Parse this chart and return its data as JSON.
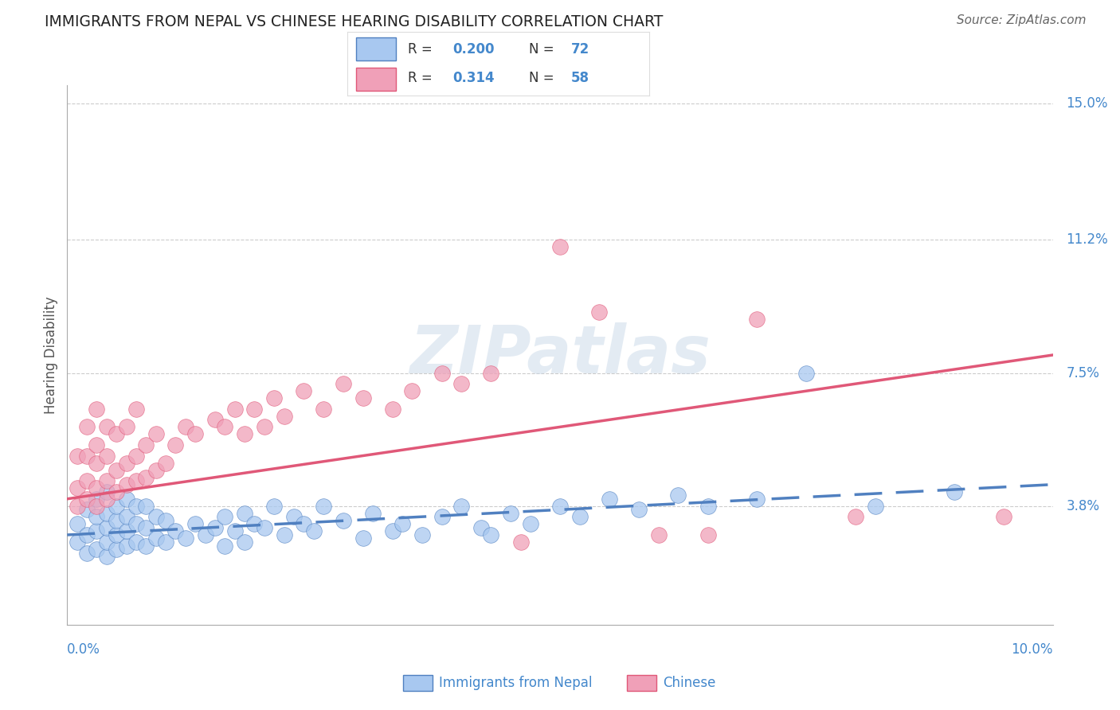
{
  "title": "IMMIGRANTS FROM NEPAL VS CHINESE HEARING DISABILITY CORRELATION CHART",
  "source": "Source: ZipAtlas.com",
  "ylabel": "Hearing Disability",
  "xlim": [
    0.0,
    0.1
  ],
  "ylim": [
    0.005,
    0.155
  ],
  "ytick_labels": [
    "3.8%",
    "7.5%",
    "11.2%",
    "15.0%"
  ],
  "ytick_positions": [
    0.038,
    0.075,
    0.112,
    0.15
  ],
  "nepal_R": 0.2,
  "nepal_N": 72,
  "chinese_R": 0.314,
  "chinese_N": 58,
  "nepal_color": "#a8c8f0",
  "chinese_color": "#f0a0b8",
  "nepal_line_color": "#5080c0",
  "chinese_line_color": "#e05878",
  "legend_label_nepal": "Immigrants from Nepal",
  "legend_label_chinese": "Chinese",
  "watermark": "ZIPatlas",
  "background_color": "#ffffff",
  "grid_color": "#cccccc",
  "title_color": "#222222",
  "axis_label_color": "#555555",
  "tick_label_color": "#4488cc",
  "source_color": "#666666",
  "nepal_line_x0": 0.0,
  "nepal_line_y0": 0.03,
  "nepal_line_x1": 0.1,
  "nepal_line_y1": 0.044,
  "chinese_line_x0": 0.0,
  "chinese_line_y0": 0.04,
  "chinese_line_x1": 0.1,
  "chinese_line_y1": 0.08,
  "nepal_scatter_x": [
    0.001,
    0.001,
    0.002,
    0.002,
    0.002,
    0.003,
    0.003,
    0.003,
    0.003,
    0.004,
    0.004,
    0.004,
    0.004,
    0.004,
    0.005,
    0.005,
    0.005,
    0.005,
    0.006,
    0.006,
    0.006,
    0.006,
    0.007,
    0.007,
    0.007,
    0.008,
    0.008,
    0.008,
    0.009,
    0.009,
    0.01,
    0.01,
    0.011,
    0.012,
    0.013,
    0.014,
    0.015,
    0.016,
    0.016,
    0.017,
    0.018,
    0.018,
    0.019,
    0.02,
    0.021,
    0.022,
    0.023,
    0.024,
    0.025,
    0.026,
    0.028,
    0.03,
    0.031,
    0.033,
    0.034,
    0.036,
    0.038,
    0.04,
    0.042,
    0.043,
    0.045,
    0.047,
    0.05,
    0.052,
    0.055,
    0.058,
    0.062,
    0.065,
    0.07,
    0.075,
    0.082,
    0.09
  ],
  "nepal_scatter_y": [
    0.028,
    0.033,
    0.025,
    0.03,
    0.037,
    0.026,
    0.031,
    0.035,
    0.04,
    0.024,
    0.028,
    0.032,
    0.036,
    0.042,
    0.026,
    0.03,
    0.034,
    0.038,
    0.027,
    0.031,
    0.035,
    0.04,
    0.028,
    0.033,
    0.038,
    0.027,
    0.032,
    0.038,
    0.029,
    0.035,
    0.028,
    0.034,
    0.031,
    0.029,
    0.033,
    0.03,
    0.032,
    0.027,
    0.035,
    0.031,
    0.028,
    0.036,
    0.033,
    0.032,
    0.038,
    0.03,
    0.035,
    0.033,
    0.031,
    0.038,
    0.034,
    0.029,
    0.036,
    0.031,
    0.033,
    0.03,
    0.035,
    0.038,
    0.032,
    0.03,
    0.036,
    0.033,
    0.038,
    0.035,
    0.04,
    0.037,
    0.041,
    0.038,
    0.04,
    0.075,
    0.038,
    0.042
  ],
  "chinese_scatter_x": [
    0.001,
    0.001,
    0.001,
    0.002,
    0.002,
    0.002,
    0.002,
    0.003,
    0.003,
    0.003,
    0.003,
    0.003,
    0.004,
    0.004,
    0.004,
    0.004,
    0.005,
    0.005,
    0.005,
    0.006,
    0.006,
    0.006,
    0.007,
    0.007,
    0.007,
    0.008,
    0.008,
    0.009,
    0.009,
    0.01,
    0.011,
    0.012,
    0.013,
    0.015,
    0.016,
    0.017,
    0.018,
    0.019,
    0.02,
    0.021,
    0.022,
    0.024,
    0.026,
    0.028,
    0.03,
    0.033,
    0.035,
    0.038,
    0.04,
    0.043,
    0.046,
    0.05,
    0.054,
    0.06,
    0.065,
    0.07,
    0.08,
    0.095
  ],
  "chinese_scatter_y": [
    0.038,
    0.043,
    0.052,
    0.04,
    0.045,
    0.052,
    0.06,
    0.038,
    0.043,
    0.05,
    0.055,
    0.065,
    0.04,
    0.045,
    0.052,
    0.06,
    0.042,
    0.048,
    0.058,
    0.044,
    0.05,
    0.06,
    0.045,
    0.052,
    0.065,
    0.046,
    0.055,
    0.048,
    0.058,
    0.05,
    0.055,
    0.06,
    0.058,
    0.062,
    0.06,
    0.065,
    0.058,
    0.065,
    0.06,
    0.068,
    0.063,
    0.07,
    0.065,
    0.072,
    0.068,
    0.065,
    0.07,
    0.075,
    0.072,
    0.075,
    0.028,
    0.11,
    0.092,
    0.03,
    0.03,
    0.09,
    0.035,
    0.035
  ]
}
